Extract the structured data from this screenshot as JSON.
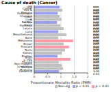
{
  "chart_data": {
    "type": "bar",
    "orientation": "horizontal",
    "stacked": true,
    "title": "Cause of death (Cancer)",
    "x_label": "Proportionate Mortality Ratio (PMR)",
    "categories": [
      "All Cancer",
      "Oral Cav & Pharynx",
      "Esophagus",
      "Stomach",
      "Colon & Rectum",
      "Liver & Bile Ducts",
      "Pancreas",
      "Larynx",
      "Lung",
      "Mesothelioma",
      "Bone",
      "Melanoma",
      "Breast",
      "Prostate",
      "Testis",
      "Kidney",
      "Bladder",
      "Brain & CNS",
      "Thyroid",
      "Non-Hodgkin Lymphoma",
      "Multiple Myeloma",
      "Leukemia"
    ],
    "series": [
      {
        "name": "Non-sig",
        "color": "#c0c0c0",
        "values": [
          null,
          1.05,
          null,
          0.95,
          1.02,
          null,
          0.98,
          1.1,
          null,
          1.2,
          0.9,
          null,
          1.1,
          null,
          1.15,
          1.03,
          null,
          null,
          0.92,
          1.04,
          1.08,
          null
        ]
      },
      {
        "name": "p < 0.05",
        "color": "#9aa0ee",
        "values": [
          0.95,
          null,
          0.88,
          null,
          null,
          0.85,
          null,
          null,
          0.9,
          null,
          null,
          null,
          null,
          null,
          null,
          null,
          0.87,
          null,
          null,
          null,
          null,
          0.93
        ]
      },
      {
        "name": "p < 0.01",
        "color": "#ff9aa8",
        "values": [
          null,
          null,
          null,
          null,
          null,
          null,
          null,
          null,
          null,
          null,
          null,
          1.45,
          null,
          1.3,
          null,
          null,
          null,
          1.35,
          null,
          null,
          null,
          null
        ]
      }
    ],
    "value_labels": [
      "PMR = 0.95",
      "PMR = 1.05",
      "PMR = 0.88",
      "PMR = 0.95",
      "PMR = 1.02",
      "PMR = 0.85",
      "PMR = 0.98",
      "PMR = 1.10",
      "PMR = 0.90",
      "PMR = 1.20",
      "PMR = 0.90",
      "PMR = 1.45",
      "PMR = 1.10",
      "PMR = 1.30",
      "PMR = 1.15",
      "PMR = 1.03",
      "PMR = 0.87",
      "PMR = 1.35",
      "PMR = 0.92",
      "PMR = 1.04",
      "PMR = 1.08",
      "PMR = 0.93"
    ],
    "xlim": [
      0,
      2
    ],
    "xticks": [
      0,
      0.5,
      1,
      1.5,
      2
    ],
    "grid": true,
    "legend": "lower right"
  }
}
